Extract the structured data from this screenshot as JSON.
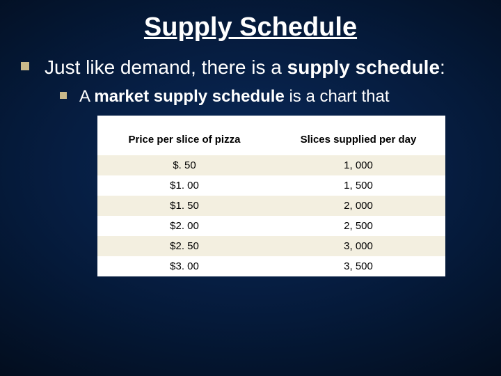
{
  "title": "Supply Schedule",
  "bullet1_a": "Just like demand, there is a ",
  "bullet1_b": "supply schedule",
  "bullet1_c": ":",
  "bullet2_a": "A ",
  "bullet2_b": "market supply schedule",
  "bullet2_c": " is a chart that",
  "table": {
    "header_left": "Price per slice of pizza",
    "header_right": "Slices supplied per day",
    "rows": [
      {
        "price": "$. 50",
        "qty": "1, 000"
      },
      {
        "price": "$1. 00",
        "qty": "1, 500"
      },
      {
        "price": "$1. 50",
        "qty": "2, 000"
      },
      {
        "price": "$2. 00",
        "qty": "2, 500"
      },
      {
        "price": "$2. 50",
        "qty": "3, 000"
      },
      {
        "price": "$3. 00",
        "qty": "3, 500"
      }
    ]
  },
  "colors": {
    "bullet": "#c9b98a",
    "bg_center": "#0a2a5c",
    "bg_edge": "#000000",
    "row_even": "#f3efe0",
    "row_odd": "#ffffff",
    "header_bg": "#ffffff",
    "text_light": "#ffffff",
    "text_dark": "#000000"
  },
  "fonts": {
    "title_size": 38,
    "lvl1_size": 28,
    "lvl2_size": 24,
    "table_header_size": 15,
    "table_cell_size": 15
  }
}
